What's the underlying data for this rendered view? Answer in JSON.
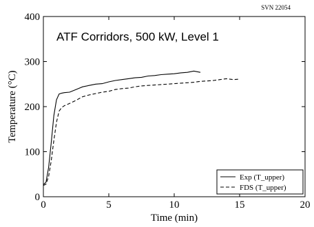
{
  "version_tag": "SVN 22054",
  "chart_data": {
    "type": "line",
    "title": "ATF Corridors, 500 kW, Level 1",
    "xlabel": "Time (min)",
    "ylabel": "Temperature (°C)",
    "xlim": [
      0,
      20
    ],
    "ylim": [
      0,
      400
    ],
    "xticks": [
      "0",
      "5",
      "10",
      "15",
      "20"
    ],
    "yticks": [
      "0",
      "100",
      "200",
      "300",
      "400"
    ],
    "grid": false,
    "legend_position": "bottom-right",
    "series": [
      {
        "name": "Exp (T_upper)",
        "style": "solid",
        "color": "#000000",
        "x": [
          0,
          0.2,
          0.4,
          0.6,
          0.8,
          1.0,
          1.2,
          1.4,
          1.6,
          2.0,
          2.5,
          3.0,
          3.5,
          4.0,
          4.5,
          5.0,
          5.5,
          6.0,
          6.5,
          7.0,
          7.5,
          8.0,
          8.5,
          9.0,
          9.5,
          10.0,
          10.5,
          11.0,
          11.5,
          12.0
        ],
        "y": [
          27,
          32,
          65,
          120,
          180,
          215,
          228,
          230,
          231,
          232,
          238,
          244,
          247,
          250,
          251,
          255,
          258,
          260,
          262,
          264,
          265,
          268,
          269,
          271,
          272,
          273,
          275,
          276,
          279,
          276
        ]
      },
      {
        "name": "FDS (T_upper)",
        "style": "dashed",
        "color": "#000000",
        "x": [
          0,
          0.2,
          0.4,
          0.6,
          0.8,
          1.0,
          1.2,
          1.4,
          1.6,
          2.0,
          2.5,
          3.0,
          3.5,
          4.0,
          4.5,
          5.0,
          5.5,
          6.0,
          6.5,
          7.0,
          7.5,
          8.0,
          8.5,
          9.0,
          9.5,
          10.0,
          10.5,
          11.0,
          11.5,
          12.0,
          12.5,
          13.0,
          13.5,
          14.0,
          14.5,
          15.0
        ],
        "y": [
          25,
          28,
          45,
          80,
          125,
          165,
          190,
          198,
          202,
          207,
          214,
          222,
          226,
          229,
          232,
          234,
          238,
          240,
          241,
          244,
          246,
          247,
          248,
          249,
          250,
          251,
          252,
          253,
          254,
          256,
          257,
          258,
          260,
          262,
          260,
          261
        ]
      }
    ]
  }
}
